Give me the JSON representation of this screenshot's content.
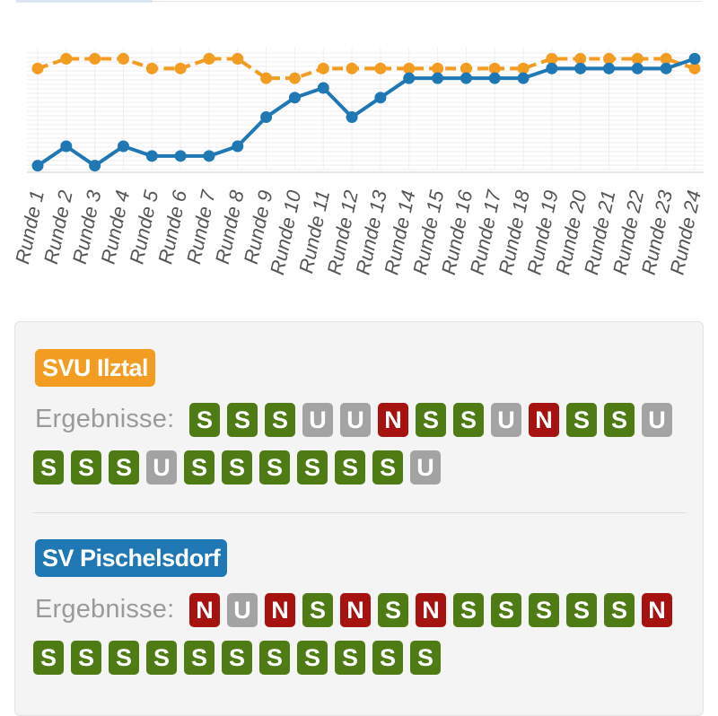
{
  "chart_data": {
    "type": "line",
    "x": [
      "Runde 1",
      "Runde 2",
      "Runde 3",
      "Runde 4",
      "Runde 5",
      "Runde 6",
      "Runde 7",
      "Runde 8",
      "Runde 9",
      "Runde 10",
      "Runde 11",
      "Runde 12",
      "Runde 13",
      "Runde 14",
      "Runde 15",
      "Runde 16",
      "Runde 17",
      "Runde 18",
      "Runde 19",
      "Runde 20",
      "Runde 21",
      "Runde 22",
      "Runde 23",
      "Runde 24"
    ],
    "series": [
      {
        "name": "SVU Ilztal",
        "color": "#f39c22",
        "values": [
          2,
          1,
          1,
          1,
          2,
          2,
          1,
          1,
          3,
          3,
          2,
          2,
          2,
          2,
          2,
          2,
          2,
          2,
          1,
          1,
          1,
          1,
          1,
          2
        ]
      },
      {
        "name": "SV Pischelsdorf",
        "color": "#1f77b4",
        "values": [
          12,
          10,
          12,
          10,
          11,
          11,
          11,
          10,
          7,
          5,
          4,
          7,
          5,
          3,
          3,
          3,
          3,
          3,
          2,
          2,
          2,
          2,
          2,
          1
        ]
      }
    ],
    "ylim": [
      0.4,
      12.4
    ],
    "y_inverted": true,
    "grid": true
  },
  "teams": [
    {
      "name": "SVU Ilztal",
      "color": "#f39c22",
      "results_label": "Ergebnisse:",
      "results": [
        "S",
        "S",
        "S",
        "U",
        "U",
        "N",
        "S",
        "S",
        "U",
        "N",
        "S",
        "S",
        "U",
        "S",
        "S",
        "S",
        "U",
        "S",
        "S",
        "S",
        "S",
        "S",
        "S",
        "U"
      ]
    },
    {
      "name": "SV Pischelsdorf",
      "color": "#1f77b4",
      "results_label": "Ergebnisse:",
      "results": [
        "N",
        "U",
        "N",
        "S",
        "N",
        "S",
        "N",
        "S",
        "S",
        "S",
        "S",
        "S",
        "N",
        "S",
        "S",
        "S",
        "S",
        "S",
        "S",
        "S",
        "S",
        "S",
        "S",
        "S"
      ]
    }
  ],
  "result_colors": {
    "S": "#4f7b14",
    "U": "#a3a3a3",
    "N": "#a5120f"
  }
}
